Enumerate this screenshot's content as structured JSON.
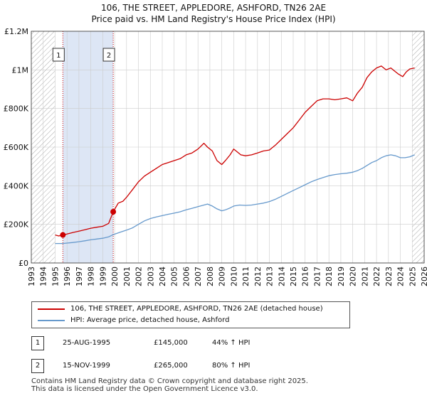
{
  "header": {
    "title_line1": "106, THE STREET, APPLEDORE, ASHFORD, TN26 2AE",
    "title_line2": "Price paid vs. HM Land Registry's House Price Index (HPI)"
  },
  "colors": {
    "price_line": "#cc0000",
    "hpi_line": "#6699cc",
    "shade": "#dde6f5",
    "grid": "#cccccc",
    "marker": "#cc0000"
  },
  "chart_data": {
    "type": "line",
    "title": "106, THE STREET, APPLEDORE, ASHFORD, TN26 2AE — Price paid vs. HM Land Registry's House Price Index (HPI)",
    "xlabel": "",
    "ylabel": "",
    "xlim": [
      1993,
      2026
    ],
    "ylim": [
      0,
      1200000
    ],
    "x_ticks": [
      1993,
      1994,
      1995,
      1996,
      1997,
      1998,
      1999,
      2000,
      2001,
      2002,
      2003,
      2004,
      2005,
      2006,
      2007,
      2008,
      2009,
      2010,
      2011,
      2012,
      2013,
      2014,
      2015,
      2016,
      2017,
      2018,
      2019,
      2020,
      2021,
      2022,
      2023,
      2024,
      2025,
      2026
    ],
    "y_ticks": [
      {
        "value": 0,
        "label": "£0"
      },
      {
        "value": 200000,
        "label": "£200K"
      },
      {
        "value": 400000,
        "label": "£400K"
      },
      {
        "value": 600000,
        "label": "£600K"
      },
      {
        "value": 800000,
        "label": "£800K"
      },
      {
        "value": 1000000,
        "label": "£1M"
      },
      {
        "value": 1200000,
        "label": "£1.2M"
      }
    ],
    "grid": true,
    "hatched_ranges": [
      [
        1993,
        1995
      ],
      [
        2025,
        2026
      ]
    ],
    "shaded_range": [
      1995.65,
      1999.88
    ],
    "series": [
      {
        "name": "106, THE STREET, APPLEDORE, ASHFORD, TN26 2AE (detached house)",
        "color": "#cc0000",
        "x": [
          1995.0,
          1995.3,
          1995.65,
          1996.0,
          1996.5,
          1997.0,
          1997.5,
          1998.0,
          1998.5,
          1999.0,
          1999.5,
          1999.88,
          2000.3,
          2000.7,
          2001.0,
          2001.5,
          2002.0,
          2002.5,
          2003.0,
          2003.5,
          2004.0,
          2004.5,
          2005.0,
          2005.5,
          2006.0,
          2006.5,
          2007.0,
          2007.5,
          2007.8,
          2008.2,
          2008.6,
          2009.0,
          2009.3,
          2009.7,
          2010.0,
          2010.3,
          2010.6,
          2011.0,
          2011.5,
          2012.0,
          2012.5,
          2013.0,
          2013.5,
          2014.0,
          2014.5,
          2015.0,
          2015.5,
          2016.0,
          2016.5,
          2017.0,
          2017.5,
          2018.0,
          2018.5,
          2019.0,
          2019.5,
          2020.0,
          2020.4,
          2020.8,
          2021.2,
          2021.6,
          2022.0,
          2022.4,
          2022.8,
          2023.2,
          2023.5,
          2023.8,
          2024.2,
          2024.5,
          2024.8,
          2025.2
        ],
        "values": [
          145000,
          140000,
          145000,
          150000,
          158000,
          165000,
          172000,
          180000,
          185000,
          190000,
          205000,
          265000,
          310000,
          320000,
          340000,
          380000,
          420000,
          450000,
          470000,
          490000,
          510000,
          520000,
          530000,
          540000,
          560000,
          570000,
          590000,
          620000,
          600000,
          580000,
          530000,
          510000,
          530000,
          560000,
          590000,
          575000,
          560000,
          555000,
          560000,
          570000,
          580000,
          585000,
          610000,
          640000,
          670000,
          700000,
          740000,
          780000,
          810000,
          840000,
          850000,
          850000,
          845000,
          850000,
          855000,
          840000,
          880000,
          910000,
          960000,
          990000,
          1010000,
          1020000,
          1000000,
          1010000,
          995000,
          980000,
          965000,
          990000,
          1005000,
          1010000
        ]
      },
      {
        "name": "HPI: Average price, detached house, Ashford",
        "color": "#6699cc",
        "x": [
          1995.0,
          1995.65,
          1996.0,
          1996.5,
          1997.0,
          1997.5,
          1998.0,
          1998.5,
          1999.0,
          1999.5,
          1999.88,
          2000.5,
          2001.0,
          2001.5,
          2002.0,
          2002.5,
          2003.0,
          2003.5,
          2004.0,
          2004.5,
          2005.0,
          2005.5,
          2006.0,
          2006.5,
          2007.0,
          2007.5,
          2007.8,
          2008.2,
          2008.6,
          2009.0,
          2009.3,
          2009.7,
          2010.0,
          2010.5,
          2011.0,
          2011.5,
          2012.0,
          2012.5,
          2013.0,
          2013.5,
          2014.0,
          2014.5,
          2015.0,
          2015.5,
          2016.0,
          2016.5,
          2017.0,
          2017.5,
          2018.0,
          2018.5,
          2019.0,
          2019.5,
          2020.0,
          2020.4,
          2020.8,
          2021.2,
          2021.6,
          2022.0,
          2022.4,
          2022.8,
          2023.2,
          2023.6,
          2024.0,
          2024.4,
          2024.8,
          2025.2
        ],
        "values": [
          101000,
          101000,
          103000,
          106000,
          110000,
          115000,
          120000,
          124000,
          128000,
          135000,
          147000,
          160000,
          170000,
          182000,
          200000,
          218000,
          230000,
          238000,
          245000,
          252000,
          258000,
          265000,
          275000,
          283000,
          292000,
          300000,
          305000,
          295000,
          280000,
          270000,
          275000,
          285000,
          295000,
          300000,
          298000,
          300000,
          305000,
          310000,
          318000,
          330000,
          345000,
          360000,
          375000,
          390000,
          405000,
          420000,
          432000,
          442000,
          452000,
          458000,
          462000,
          465000,
          470000,
          478000,
          490000,
          505000,
          520000,
          530000,
          545000,
          555000,
          560000,
          555000,
          545000,
          545000,
          550000,
          560000
        ]
      }
    ],
    "markers": [
      {
        "label": "1",
        "x": 1995.65,
        "value": 145000
      },
      {
        "label": "2",
        "x": 1999.88,
        "value": 265000
      }
    ]
  },
  "legend": {
    "items": [
      {
        "label": "106, THE STREET, APPLEDORE, ASHFORD, TN26 2AE (detached house)"
      },
      {
        "label": "HPI: Average price, detached house, Ashford"
      }
    ]
  },
  "transactions": [
    {
      "num": "1",
      "date": "25-AUG-1995",
      "price": "£145,000",
      "change": "44% ↑ HPI"
    },
    {
      "num": "2",
      "date": "15-NOV-1999",
      "price": "£265,000",
      "change": "80% ↑ HPI"
    }
  ],
  "footer": {
    "line1": "Contains HM Land Registry data © Crown copyright and database right 2025.",
    "line2": "This data is licensed under the Open Government Licence v3.0."
  }
}
